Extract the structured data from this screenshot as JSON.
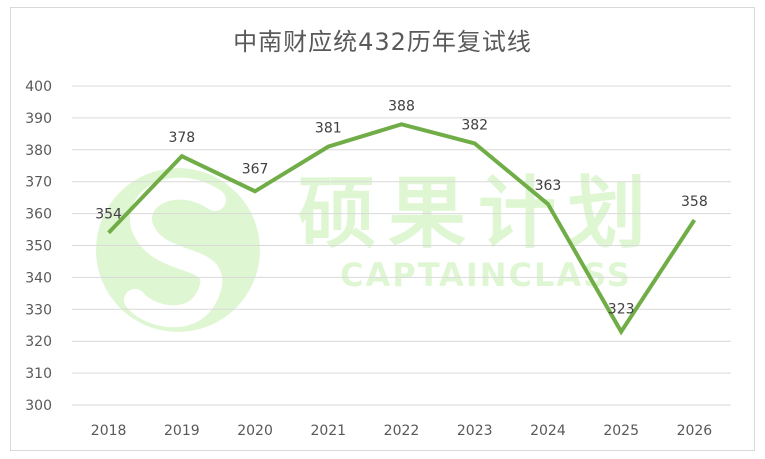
{
  "chart_data": {
    "type": "line",
    "title": "中南财应统432历年复试线",
    "categories": [
      "2018",
      "2019",
      "2020",
      "2021",
      "2022",
      "2023",
      "2024",
      "2025",
      "2026"
    ],
    "series": [
      {
        "values": [
          354,
          378,
          367,
          381,
          388,
          382,
          363,
          323,
          358
        ]
      }
    ],
    "ylim": [
      300,
      400
    ],
    "yticks": [
      300,
      310,
      320,
      330,
      340,
      350,
      360,
      370,
      380,
      390,
      400
    ],
    "grid": true,
    "line_color": "#70ad47",
    "data_labels": true
  },
  "watermark": {
    "text_cn": "硕果计划",
    "text_en": "CAPTAINCLASS",
    "color": "#c6efb0"
  }
}
